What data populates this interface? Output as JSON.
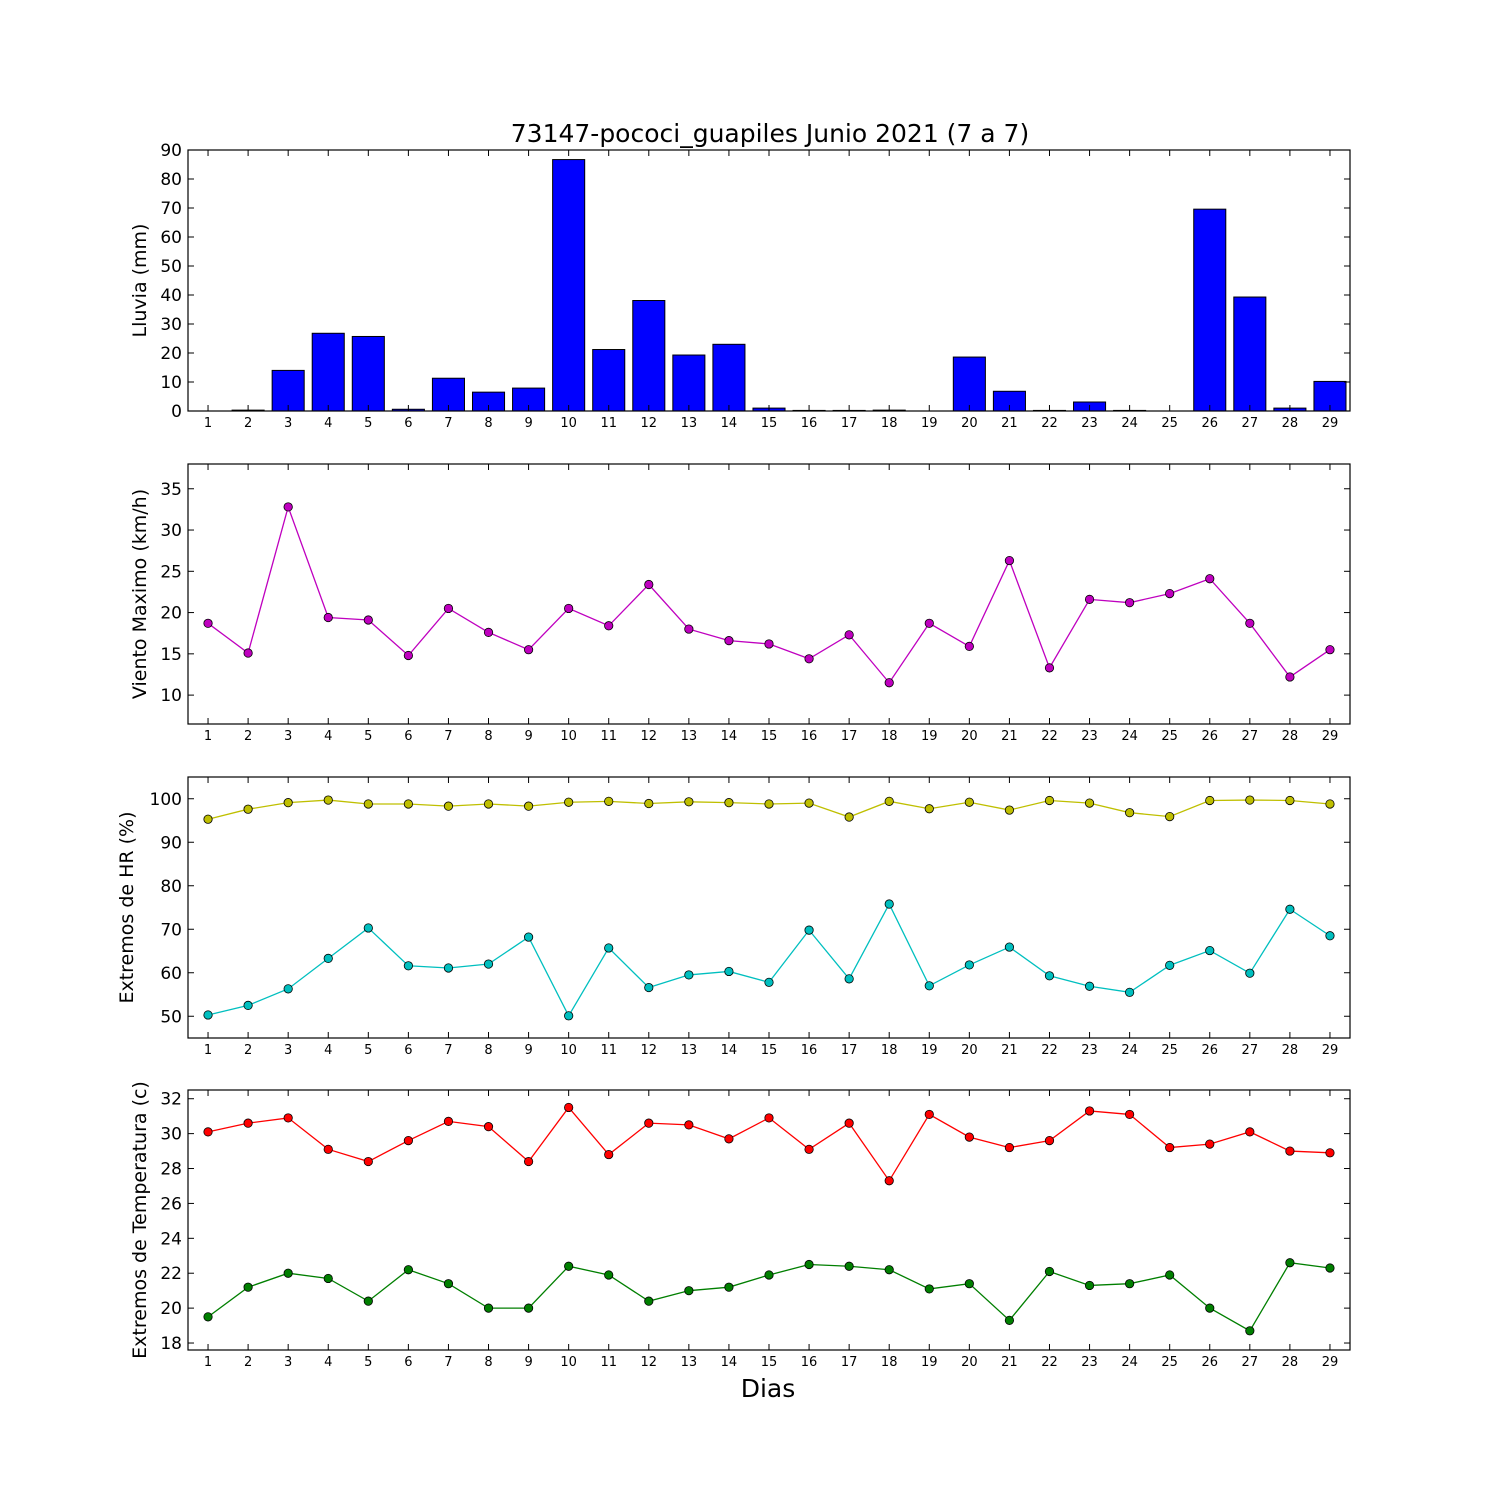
{
  "figure": {
    "title": "73147-pococi_guapiles Junio 2021  (7 a 7)",
    "xlabel": "Dias"
  },
  "chart_data": [
    {
      "id": "rain",
      "type": "bar",
      "ylabel": "Lluvia (mm)",
      "ylim": [
        0,
        90
      ],
      "yticks": [
        0,
        10,
        20,
        30,
        40,
        50,
        60,
        70,
        80,
        90
      ],
      "categories": [
        1,
        2,
        3,
        4,
        5,
        6,
        7,
        8,
        9,
        10,
        11,
        12,
        13,
        14,
        15,
        16,
        17,
        18,
        19,
        20,
        21,
        22,
        23,
        24,
        25,
        26,
        27,
        28,
        29
      ],
      "series": [
        {
          "color": "#0000ff",
          "values": [
            0.0,
            0.3,
            14.0,
            26.8,
            25.7,
            0.6,
            11.3,
            6.5,
            7.9,
            86.7,
            21.2,
            38.1,
            19.3,
            23.0,
            1.0,
            0.2,
            0.2,
            0.3,
            0.0,
            18.6,
            6.8,
            0.2,
            3.1,
            0.2,
            0.0,
            69.6,
            39.3,
            1.0,
            10.2
          ]
        }
      ],
      "grid": false
    },
    {
      "id": "wind",
      "type": "line",
      "ylabel": "Viento Maximo (km/h)",
      "ylim": [
        6.5,
        38
      ],
      "yticks": [
        10,
        15,
        20,
        25,
        30,
        35
      ],
      "x": [
        1,
        2,
        3,
        4,
        5,
        6,
        7,
        8,
        9,
        10,
        11,
        12,
        13,
        14,
        15,
        16,
        17,
        18,
        19,
        20,
        21,
        22,
        23,
        24,
        25,
        26,
        27,
        28,
        29
      ],
      "series": [
        {
          "color": "#bf00bf",
          "values": [
            18.7,
            15.1,
            32.8,
            19.4,
            19.1,
            14.8,
            20.5,
            17.6,
            15.5,
            20.5,
            18.4,
            23.4,
            18.0,
            16.6,
            16.2,
            14.4,
            17.3,
            11.5,
            18.7,
            15.9,
            26.3,
            13.3,
            21.6,
            21.2,
            22.3,
            24.1,
            18.7,
            12.2,
            15.5
          ]
        }
      ],
      "grid": false
    },
    {
      "id": "humidity",
      "type": "line",
      "ylabel": "Extremos de HR (%)",
      "ylim": [
        45,
        105
      ],
      "yticks": [
        50,
        60,
        70,
        80,
        90,
        100
      ],
      "x": [
        1,
        2,
        3,
        4,
        5,
        6,
        7,
        8,
        9,
        10,
        11,
        12,
        13,
        14,
        15,
        16,
        17,
        18,
        19,
        20,
        21,
        22,
        23,
        24,
        25,
        26,
        27,
        28,
        29
      ],
      "series": [
        {
          "color": "#bfbf00",
          "values": [
            95.3,
            97.6,
            99.1,
            99.7,
            98.8,
            98.8,
            98.3,
            98.8,
            98.3,
            99.2,
            99.4,
            98.9,
            99.3,
            99.1,
            98.8,
            99.0,
            95.8,
            99.4,
            97.7,
            99.2,
            97.4,
            99.6,
            99.0,
            96.8,
            95.9,
            99.6,
            99.7,
            99.6,
            98.8
          ]
        },
        {
          "color": "#00bfbf",
          "values": [
            50.3,
            52.5,
            56.3,
            63.3,
            70.3,
            61.6,
            61.1,
            62.0,
            68.2,
            50.1,
            65.7,
            56.6,
            59.5,
            60.3,
            57.8,
            69.8,
            58.6,
            75.8,
            57.0,
            61.8,
            65.9,
            59.3,
            56.9,
            55.5,
            61.7,
            65.1,
            59.9,
            74.6,
            68.5
          ]
        }
      ],
      "grid": false
    },
    {
      "id": "temperature",
      "type": "line",
      "ylabel": "Extremos de Temperatura (c)",
      "ylim": [
        17.6,
        32.5
      ],
      "yticks": [
        18,
        20,
        22,
        24,
        26,
        28,
        30,
        32
      ],
      "x": [
        1,
        2,
        3,
        4,
        5,
        6,
        7,
        8,
        9,
        10,
        11,
        12,
        13,
        14,
        15,
        16,
        17,
        18,
        19,
        20,
        21,
        22,
        23,
        24,
        25,
        26,
        27,
        28,
        29
      ],
      "series": [
        {
          "color": "#ff0000",
          "values": [
            30.1,
            30.6,
            30.9,
            29.1,
            28.4,
            29.6,
            30.7,
            30.4,
            28.4,
            31.5,
            28.8,
            30.6,
            30.5,
            29.7,
            30.9,
            29.1,
            30.6,
            27.3,
            31.1,
            29.8,
            29.2,
            29.6,
            31.3,
            31.1,
            29.2,
            29.4,
            30.1,
            29.0,
            28.9
          ]
        },
        {
          "color": "#007f00",
          "values": [
            19.5,
            21.2,
            22.0,
            21.7,
            20.4,
            22.2,
            21.4,
            20.0,
            20.0,
            22.4,
            21.9,
            20.4,
            21.0,
            21.2,
            21.9,
            22.5,
            22.4,
            22.2,
            21.1,
            21.4,
            19.3,
            22.1,
            21.3,
            21.4,
            21.9,
            20.0,
            18.7,
            22.6,
            22.3
          ]
        }
      ],
      "grid": false
    }
  ]
}
